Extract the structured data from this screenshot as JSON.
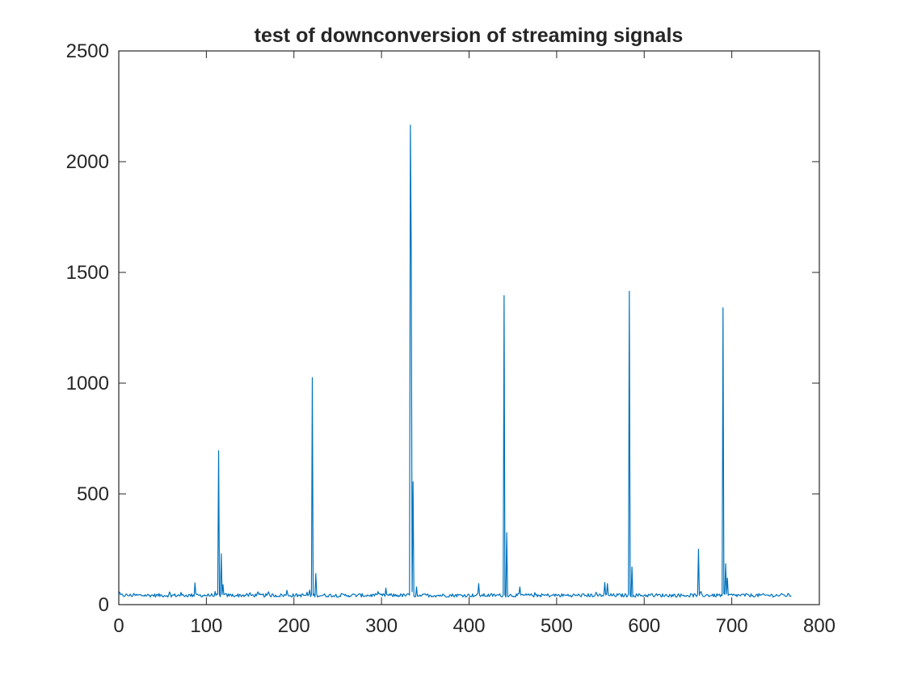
{
  "chart_data": {
    "type": "line",
    "title": "test of downconversion of streaming signals",
    "xlabel": "",
    "ylabel": "",
    "xlim": [
      0,
      800
    ],
    "ylim": [
      0,
      2500
    ],
    "x_ticks": [
      "0",
      "100",
      "200",
      "300",
      "400",
      "500",
      "600",
      "700",
      "800"
    ],
    "y_ticks": [
      "0",
      "500",
      "1000",
      "1500",
      "2000",
      "2500"
    ],
    "grid": false,
    "baseline": 42,
    "x_end": 768,
    "series": [
      {
        "color": "#0072BD",
        "peaks": [
          {
            "x": 87,
            "y": 98
          },
          {
            "x": 114,
            "y": 695
          },
          {
            "x": 117,
            "y": 230
          },
          {
            "x": 119,
            "y": 90
          },
          {
            "x": 192,
            "y": 65
          },
          {
            "x": 221,
            "y": 1025
          },
          {
            "x": 225,
            "y": 140
          },
          {
            "x": 305,
            "y": 75
          },
          {
            "x": 333,
            "y": 2165
          },
          {
            "x": 334,
            "y": 1580
          },
          {
            "x": 336,
            "y": 555
          },
          {
            "x": 340,
            "y": 80
          },
          {
            "x": 411,
            "y": 95
          },
          {
            "x": 440,
            "y": 1395
          },
          {
            "x": 443,
            "y": 325
          },
          {
            "x": 458,
            "y": 80
          },
          {
            "x": 555,
            "y": 100
          },
          {
            "x": 558,
            "y": 95
          },
          {
            "x": 583,
            "y": 1415
          },
          {
            "x": 586,
            "y": 170
          },
          {
            "x": 662,
            "y": 250
          },
          {
            "x": 690,
            "y": 1340
          },
          {
            "x": 693,
            "y": 185
          },
          {
            "x": 695,
            "y": 120
          }
        ]
      }
    ]
  }
}
